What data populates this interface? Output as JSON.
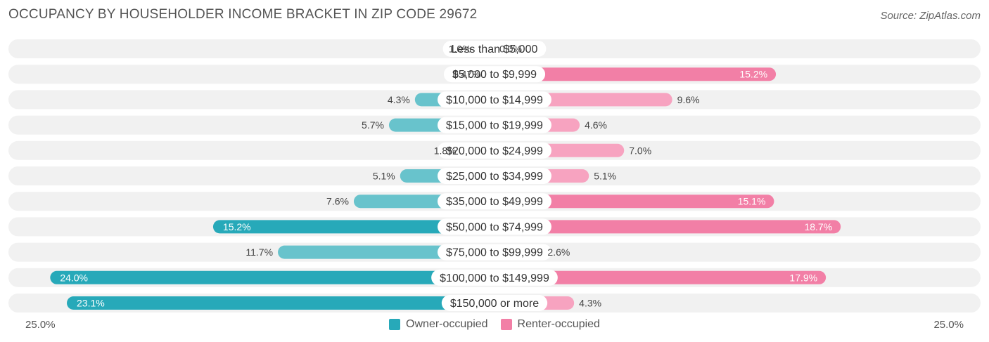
{
  "title": "OCCUPANCY BY HOUSEHOLDER INCOME BRACKET IN ZIP CODE 29672",
  "source": "Source: ZipAtlas.com",
  "colors": {
    "owner": "#68c3cc",
    "owner_strong": "#27a9b9",
    "renter": "#f7a3c0",
    "renter_strong": "#f27fa6",
    "row_bg": "#f1f1f1"
  },
  "chart_data": {
    "type": "bar",
    "orientation": "horizontal-diverging",
    "title": "OCCUPANCY BY HOUSEHOLDER INCOME BRACKET IN ZIP CODE 29672",
    "axis_min_label": "25.0%",
    "axis_max_label": "25.0%",
    "xlim": [
      -25,
      25
    ],
    "legend_position": "bottom-center",
    "categories": [
      "Less than $5,000",
      "$5,000 to $9,999",
      "$10,000 to $14,999",
      "$15,000 to $19,999",
      "$20,000 to $24,999",
      "$25,000 to $34,999",
      "$35,000 to $49,999",
      "$50,000 to $74,999",
      "$75,000 to $99,999",
      "$100,000 to $149,999",
      "$150,000 or more"
    ],
    "series": [
      {
        "name": "Owner-occupied",
        "values": [
          1.0,
          0.47,
          4.3,
          5.7,
          1.8,
          5.1,
          7.6,
          15.2,
          11.7,
          24.0,
          23.1
        ],
        "labels": [
          "1.0%",
          "0.47%",
          "4.3%",
          "5.7%",
          "1.8%",
          "5.1%",
          "7.6%",
          "15.2%",
          "11.7%",
          "24.0%",
          "23.1%"
        ]
      },
      {
        "name": "Renter-occupied",
        "values": [
          0.0,
          15.2,
          9.6,
          4.6,
          7.0,
          5.1,
          15.1,
          18.7,
          2.6,
          17.9,
          4.3
        ],
        "labels": [
          "0.0%",
          "15.2%",
          "9.6%",
          "4.6%",
          "7.0%",
          "5.1%",
          "15.1%",
          "18.7%",
          "2.6%",
          "17.9%",
          "4.3%"
        ]
      }
    ]
  }
}
